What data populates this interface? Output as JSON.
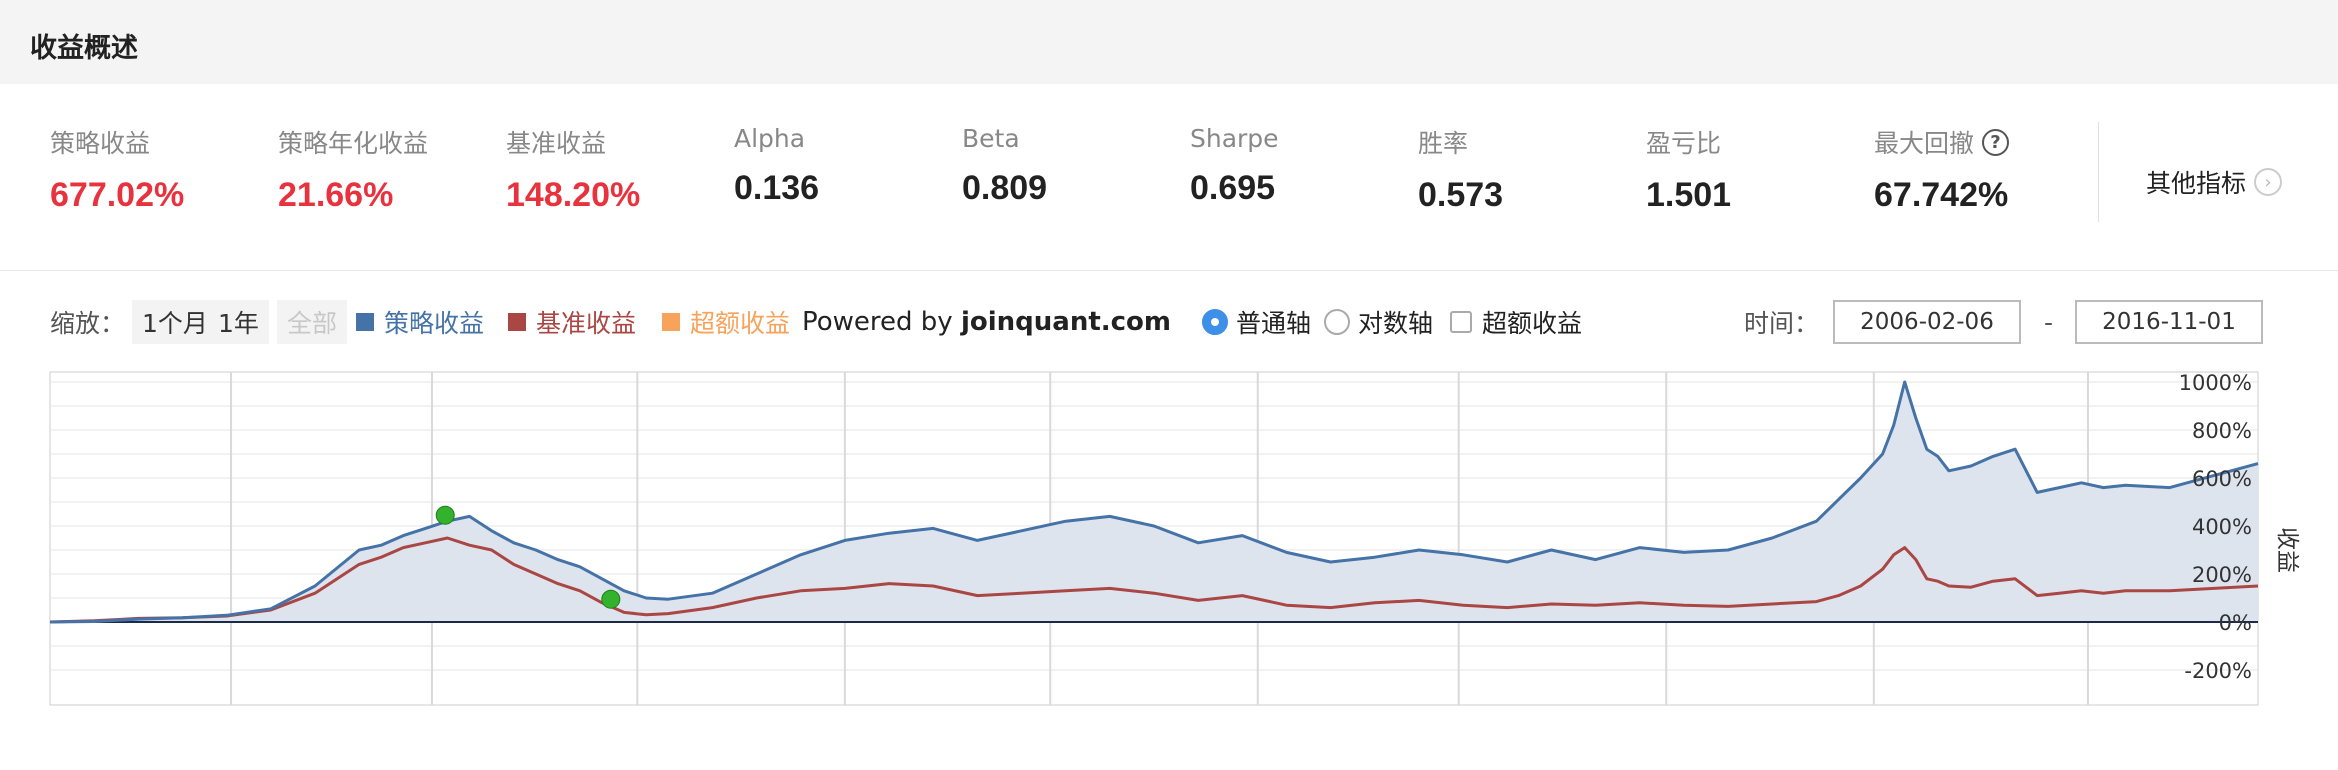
{
  "header": {
    "title": "收益概述"
  },
  "metrics": [
    {
      "label": "策略收益",
      "value": "677.02%",
      "tone": "red"
    },
    {
      "label": "策略年化收益",
      "value": "21.66%",
      "tone": "red"
    },
    {
      "label": "基准收益",
      "value": "148.20%",
      "tone": "red"
    },
    {
      "label": "Alpha",
      "value": "0.136",
      "tone": "dark"
    },
    {
      "label": "Beta",
      "value": "0.809",
      "tone": "dark"
    },
    {
      "label": "Sharpe",
      "value": "0.695",
      "tone": "dark"
    },
    {
      "label": "胜率",
      "value": "0.573",
      "tone": "dark"
    },
    {
      "label": "盈亏比",
      "value": "1.501",
      "tone": "dark"
    },
    {
      "label": "最大回撤",
      "value": "67.742%",
      "tone": "dark",
      "help_icon": "question-circle-icon"
    }
  ],
  "other_metrics": {
    "label": "其他指标",
    "icon": "chevron-right-circle-icon"
  },
  "toolbar": {
    "zoom_label": "缩放：",
    "zoom_options": [
      "1个月",
      "1年",
      "全部"
    ],
    "legend": [
      {
        "label": "策略收益",
        "color": "#4572a7"
      },
      {
        "label": "基准收益",
        "color": "#aa4643"
      },
      {
        "label": "超额收益",
        "color": "#f7a35c"
      }
    ],
    "powered_prefix": "Powered by ",
    "powered_brand": "joinquant.com",
    "axis_options": {
      "normal": "普通轴",
      "log": "对数轴",
      "selected": "普通轴"
    },
    "excess_checkbox": {
      "label": "超额收益",
      "checked": false
    },
    "time_label": "时间：",
    "start_date": "2006-02-06",
    "end_date": "2016-11-01",
    "date_separator": "-"
  },
  "chart_data": {
    "type": "line",
    "ylabel": "收益",
    "yticks": [
      "1000%",
      "800%",
      "600%",
      "400%",
      "200%",
      "0%",
      "-200%"
    ],
    "ylim": [
      -200,
      1100
    ],
    "x_range": [
      "2006-02-06",
      "2016-11-01"
    ],
    "grid": true,
    "legend_position": "top",
    "colors": {
      "strategy": "#4572a7",
      "benchmark": "#aa4643",
      "excess": "#f7a35c",
      "area_fill": "#dde4ee",
      "marker": "#35b22d"
    },
    "x": [
      0,
      0.02,
      0.04,
      0.06,
      0.08,
      0.1,
      0.12,
      0.14,
      0.15,
      0.16,
      0.17,
      0.18,
      0.19,
      0.2,
      0.21,
      0.22,
      0.23,
      0.24,
      0.25,
      0.26,
      0.27,
      0.28,
      0.3,
      0.32,
      0.34,
      0.36,
      0.38,
      0.4,
      0.42,
      0.44,
      0.46,
      0.48,
      0.5,
      0.52,
      0.54,
      0.56,
      0.58,
      0.6,
      0.62,
      0.64,
      0.66,
      0.68,
      0.7,
      0.72,
      0.74,
      0.76,
      0.78,
      0.8,
      0.81,
      0.82,
      0.83,
      0.835,
      0.84,
      0.845,
      0.85,
      0.855,
      0.86,
      0.87,
      0.88,
      0.89,
      0.9,
      0.91,
      0.92,
      0.93,
      0.94,
      0.96,
      0.98,
      1.0
    ],
    "series": [
      {
        "name": "策略收益",
        "values": [
          0,
          2,
          12,
          18,
          28,
          55,
          150,
          300,
          320,
          360,
          390,
          420,
          440,
          380,
          330,
          300,
          260,
          230,
          180,
          130,
          100,
          95,
          120,
          200,
          280,
          340,
          370,
          390,
          340,
          380,
          420,
          440,
          400,
          330,
          360,
          290,
          250,
          270,
          300,
          280,
          250,
          300,
          260,
          310,
          290,
          300,
          350,
          420,
          510,
          600,
          700,
          820,
          1000,
          850,
          720,
          690,
          630,
          650,
          690,
          720,
          540,
          560,
          580,
          560,
          570,
          560,
          610,
          660
        ]
      },
      {
        "name": "基准收益",
        "values": [
          0,
          5,
          15,
          18,
          25,
          50,
          120,
          240,
          270,
          310,
          330,
          350,
          320,
          300,
          240,
          200,
          160,
          130,
          80,
          40,
          30,
          35,
          60,
          100,
          130,
          140,
          160,
          150,
          110,
          120,
          130,
          140,
          120,
          90,
          110,
          70,
          60,
          80,
          90,
          70,
          60,
          75,
          70,
          80,
          70,
          65,
          75,
          85,
          110,
          150,
          220,
          280,
          310,
          260,
          180,
          170,
          150,
          145,
          170,
          180,
          110,
          120,
          130,
          120,
          130,
          130,
          140,
          150
        ]
      }
    ],
    "markers": [
      {
        "series": "策略收益",
        "x": 0.179,
        "y": 445
      },
      {
        "series": "策略收益",
        "x": 0.254,
        "y": 95
      }
    ]
  }
}
